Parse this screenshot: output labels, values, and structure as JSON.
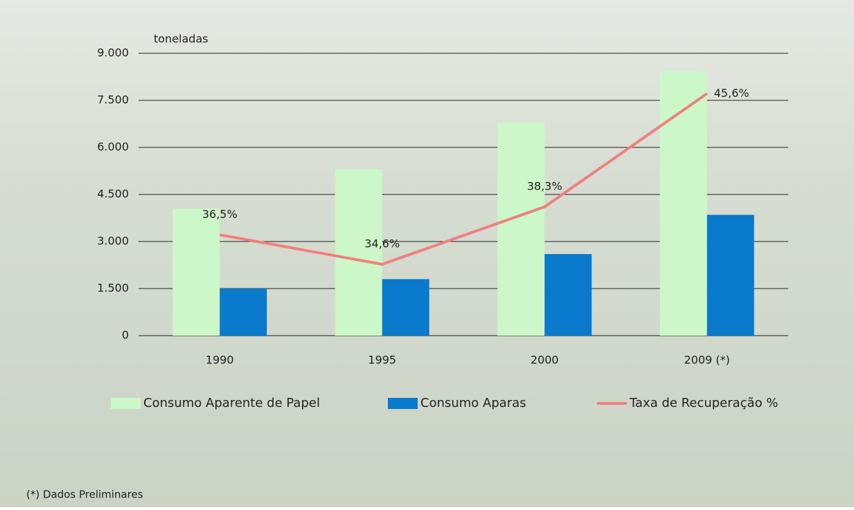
{
  "chart_data": {
    "type": "bar-line",
    "y_label": "toneladas",
    "note": "(*) Dados Preliminares",
    "categories": [
      "1990",
      "1995",
      "2000",
      "2009 (*)"
    ],
    "series": [
      {
        "name": "Consumo Aparente de Papel",
        "type": "bar",
        "color": "#ccf7c8",
        "values": [
          4050,
          5300,
          6800,
          8450
        ]
      },
      {
        "name": "Consumo Aparas",
        "type": "bar",
        "color": "#0a7acd",
        "values": [
          1500,
          1800,
          2600,
          3850
        ]
      },
      {
        "name": "Taxa de Recuperação %",
        "type": "line",
        "axis": "y2",
        "color": "#f08080",
        "values": [
          36.5,
          34.6,
          38.3,
          45.6
        ],
        "value_labels": [
          "36,5%",
          "34,6%",
          "38,3%",
          "45,6%"
        ]
      }
    ],
    "ylim": [
      0,
      9000
    ],
    "yticks": [
      0,
      {
        "value": 1500,
        "label": "1.500"
      },
      {
        "value": 3000,
        "label": "3.000"
      },
      {
        "value": 4500,
        "label": "4.500"
      },
      {
        "value": 6000,
        "label": "6.000"
      },
      {
        "value": 7500,
        "label": "7.500"
      },
      {
        "value": 9000,
        "label": "9.000"
      }
    ],
    "y2lim": [
      30,
      48.2
    ],
    "grid": true
  }
}
